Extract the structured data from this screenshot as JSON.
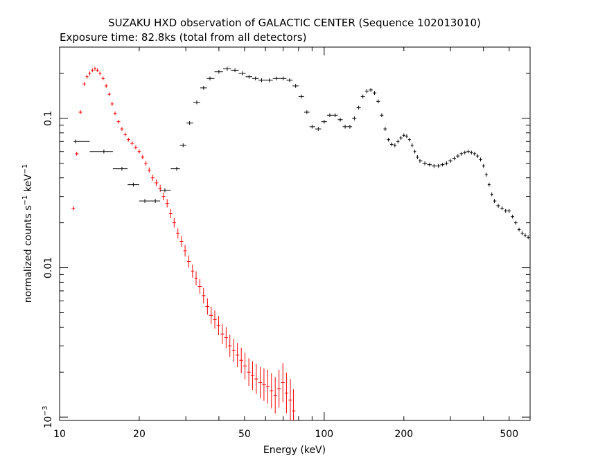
{
  "chart_data": {
    "type": "scatter",
    "title": "SUZAKU HXD observation of GALACTIC CENTER (Sequence 102013010)",
    "subtitle": "Exposure time: 82.8ks (total from all detectors)",
    "xlabel": "Energy (keV)",
    "ylabel": {
      "base": "normalized counts s",
      "exp1": "−1",
      "mid": " keV",
      "exp2": "−1"
    },
    "xscale": "log",
    "yscale": "log",
    "xlim": [
      10,
      600
    ],
    "ylim": [
      0.00095,
      0.3
    ],
    "x_ticks": [
      {
        "value": 10,
        "label": "10"
      },
      {
        "value": 20,
        "label": "20"
      },
      {
        "value": 50,
        "label": "50"
      },
      {
        "value": 100,
        "label": "100"
      },
      {
        "value": 200,
        "label": "200"
      },
      {
        "value": 500,
        "label": "500"
      }
    ],
    "y_ticks": [
      {
        "value": 0.1,
        "label": "0.1"
      },
      {
        "value": 0.01,
        "label": "0.01"
      },
      {
        "value": 0.001,
        "base": "10",
        "exp": "−3"
      }
    ],
    "series": [
      {
        "color": "#ff0000",
        "points": [
          [
            11.3,
            0.025
          ],
          [
            11.6,
            0.058
          ],
          [
            12.0,
            0.11
          ],
          [
            12.4,
            0.17
          ],
          [
            12.7,
            0.19
          ],
          [
            13.0,
            0.2
          ],
          [
            13.3,
            0.21
          ],
          [
            13.6,
            0.215
          ],
          [
            13.9,
            0.21
          ],
          [
            14.2,
            0.2
          ],
          [
            14.6,
            0.185
          ],
          [
            15.0,
            0.165
          ],
          [
            15.4,
            0.145
          ],
          [
            15.8,
            0.125
          ],
          [
            16.2,
            0.108
          ],
          [
            16.7,
            0.095
          ],
          [
            17.2,
            0.085
          ],
          [
            17.7,
            0.078
          ],
          [
            18.2,
            0.072
          ],
          [
            18.8,
            0.068
          ],
          [
            19.4,
            0.064
          ],
          [
            20.0,
            0.06
          ],
          [
            20.6,
            0.055
          ],
          [
            21.2,
            0.05
          ],
          [
            21.8,
            0.045
          ],
          [
            22.5,
            0.04
          ],
          [
            23.2,
            0.037
          ],
          [
            24.0,
            0.034
          ],
          [
            24.7,
            0.03
          ],
          [
            25.5,
            0.027
          ],
          [
            26.3,
            0.023
          ],
          [
            27.1,
            0.02
          ],
          [
            28.0,
            0.017
          ],
          [
            28.9,
            0.015
          ],
          [
            29.8,
            0.013
          ],
          [
            30.8,
            0.011
          ],
          [
            31.8,
            0.0095
          ],
          [
            32.8,
            0.0085
          ],
          [
            33.9,
            0.0075
          ],
          [
            35.0,
            0.0065
          ],
          [
            36.2,
            0.0055
          ],
          [
            37.4,
            0.0048
          ],
          [
            38.6,
            0.0045
          ],
          [
            39.9,
            0.0041
          ],
          [
            41.2,
            0.0036
          ],
          [
            42.6,
            0.0034
          ],
          [
            44.0,
            0.003
          ],
          [
            45.5,
            0.0028
          ],
          [
            47.0,
            0.0026
          ],
          [
            48.6,
            0.0024
          ],
          [
            50.2,
            0.0022
          ],
          [
            51.9,
            0.002
          ],
          [
            53.6,
            0.0019
          ],
          [
            55.4,
            0.0018
          ],
          [
            57.3,
            0.0017
          ],
          [
            59.2,
            0.00165
          ],
          [
            61.2,
            0.0016
          ],
          [
            63.2,
            0.0015
          ],
          [
            65.3,
            0.0014
          ],
          [
            67.5,
            0.00155
          ],
          [
            69.8,
            0.0017
          ],
          [
            72.0,
            0.00145
          ],
          [
            74.5,
            0.0013
          ],
          [
            76.5,
            0.0011
          ]
        ]
      },
      {
        "color": "#000000",
        "points": [
          [
            11.5,
            0.07
          ],
          [
            14.7,
            0.06
          ],
          [
            17.2,
            0.046
          ],
          [
            19.0,
            0.036
          ],
          [
            21.0,
            0.028
          ],
          [
            23.0,
            0.028
          ],
          [
            25.0,
            0.033
          ],
          [
            27.7,
            0.046
          ],
          [
            29.3,
            0.066
          ],
          [
            31.0,
            0.093
          ],
          [
            33.0,
            0.128
          ],
          [
            35.0,
            0.16
          ],
          [
            37.0,
            0.185
          ],
          [
            40.0,
            0.205
          ],
          [
            43.0,
            0.215
          ],
          [
            46.0,
            0.21
          ],
          [
            49.0,
            0.2
          ],
          [
            52.0,
            0.19
          ],
          [
            55.0,
            0.185
          ],
          [
            58.0,
            0.18
          ],
          [
            62.0,
            0.18
          ],
          [
            66.0,
            0.185
          ],
          [
            70.0,
            0.185
          ],
          [
            74.0,
            0.18
          ],
          [
            78.0,
            0.165
          ],
          [
            82.0,
            0.14
          ],
          [
            86.0,
            0.11
          ],
          [
            90.0,
            0.088
          ],
          [
            95.0,
            0.085
          ],
          [
            100.0,
            0.095
          ],
          [
            105.0,
            0.105
          ],
          [
            110.0,
            0.105
          ],
          [
            115.0,
            0.098
          ],
          [
            120.0,
            0.088
          ],
          [
            125.0,
            0.088
          ],
          [
            130.0,
            0.1
          ],
          [
            135.0,
            0.118
          ],
          [
            140.0,
            0.14
          ],
          [
            145.0,
            0.152
          ],
          [
            150.0,
            0.155
          ],
          [
            155.0,
            0.148
          ],
          [
            160.0,
            0.13
          ],
          [
            165.0,
            0.105
          ],
          [
            170.0,
            0.085
          ],
          [
            175.0,
            0.072
          ],
          [
            180.0,
            0.067
          ],
          [
            185.0,
            0.066
          ],
          [
            190.0,
            0.07
          ],
          [
            195.0,
            0.074
          ],
          [
            200.0,
            0.077
          ],
          [
            205.0,
            0.076
          ],
          [
            210.0,
            0.072
          ],
          [
            215.0,
            0.066
          ],
          [
            220.0,
            0.06
          ],
          [
            225.0,
            0.055
          ],
          [
            230.0,
            0.052
          ],
          [
            240.0,
            0.05
          ],
          [
            250.0,
            0.049
          ],
          [
            260.0,
            0.048
          ],
          [
            270.0,
            0.048
          ],
          [
            280.0,
            0.049
          ],
          [
            290.0,
            0.05
          ],
          [
            300.0,
            0.052
          ],
          [
            310.0,
            0.054
          ],
          [
            320.0,
            0.056
          ],
          [
            330.0,
            0.058
          ],
          [
            340.0,
            0.059
          ],
          [
            350.0,
            0.06
          ],
          [
            360.0,
            0.059
          ],
          [
            370.0,
            0.058
          ],
          [
            380.0,
            0.056
          ],
          [
            390.0,
            0.053
          ],
          [
            400.0,
            0.048
          ],
          [
            410.0,
            0.042
          ],
          [
            420.0,
            0.036
          ],
          [
            430.0,
            0.031
          ],
          [
            440.0,
            0.028
          ],
          [
            455.0,
            0.026
          ],
          [
            470.0,
            0.025
          ],
          [
            485.0,
            0.024
          ],
          [
            500.0,
            0.024
          ],
          [
            515.0,
            0.022
          ],
          [
            530.0,
            0.02
          ],
          [
            545.0,
            0.018
          ],
          [
            560.0,
            0.017
          ],
          [
            575.0,
            0.0165
          ],
          [
            590.0,
            0.016
          ],
          [
            600.0,
            0.016
          ]
        ]
      }
    ]
  }
}
